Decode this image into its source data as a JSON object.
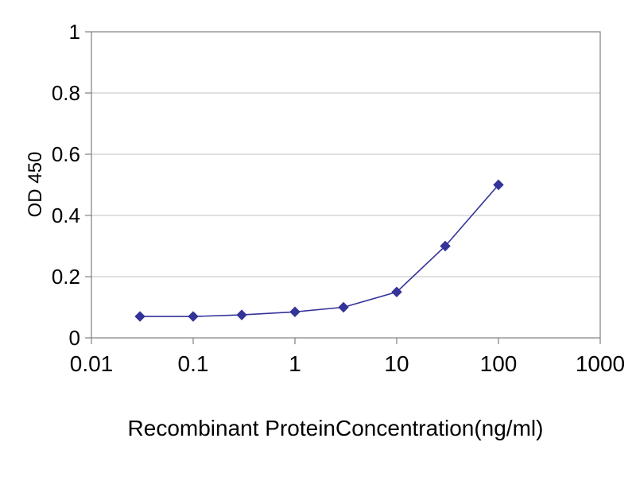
{
  "chart_data": {
    "type": "line",
    "title": "",
    "xlabel": "Recombinant ProteinConcentration(ng/ml)",
    "ylabel": "OD 450",
    "x_scale": "log",
    "xlim": [
      0.01,
      1000
    ],
    "ylim": [
      0,
      1
    ],
    "x_ticks": [
      0.01,
      0.1,
      1,
      10,
      100,
      1000
    ],
    "x_tick_labels": [
      "0.01",
      "0.1",
      "1",
      "10",
      "100",
      "1000"
    ],
    "y_ticks": [
      0,
      0.2,
      0.4,
      0.6,
      0.8,
      1
    ],
    "y_tick_labels": [
      "0",
      "0.2",
      "0.4",
      "0.6",
      "0.8",
      "1"
    ],
    "grid": "horizontal",
    "legend": "none",
    "series": [
      {
        "name": "OD 450",
        "marker": "diamond",
        "color": "#333399",
        "x": [
          0.03,
          0.1,
          0.3,
          1,
          3,
          10,
          30,
          100
        ],
        "y": [
          0.07,
          0.07,
          0.075,
          0.085,
          0.1,
          0.15,
          0.3,
          0.5
        ]
      }
    ]
  },
  "colors": {
    "background": "#ffffff",
    "plot_background": "#ffffff",
    "line": "#333399",
    "marker": "#333399",
    "grid": "#c0c0c0",
    "frame": "#808080",
    "tick": "#808080",
    "text": "#000000"
  }
}
